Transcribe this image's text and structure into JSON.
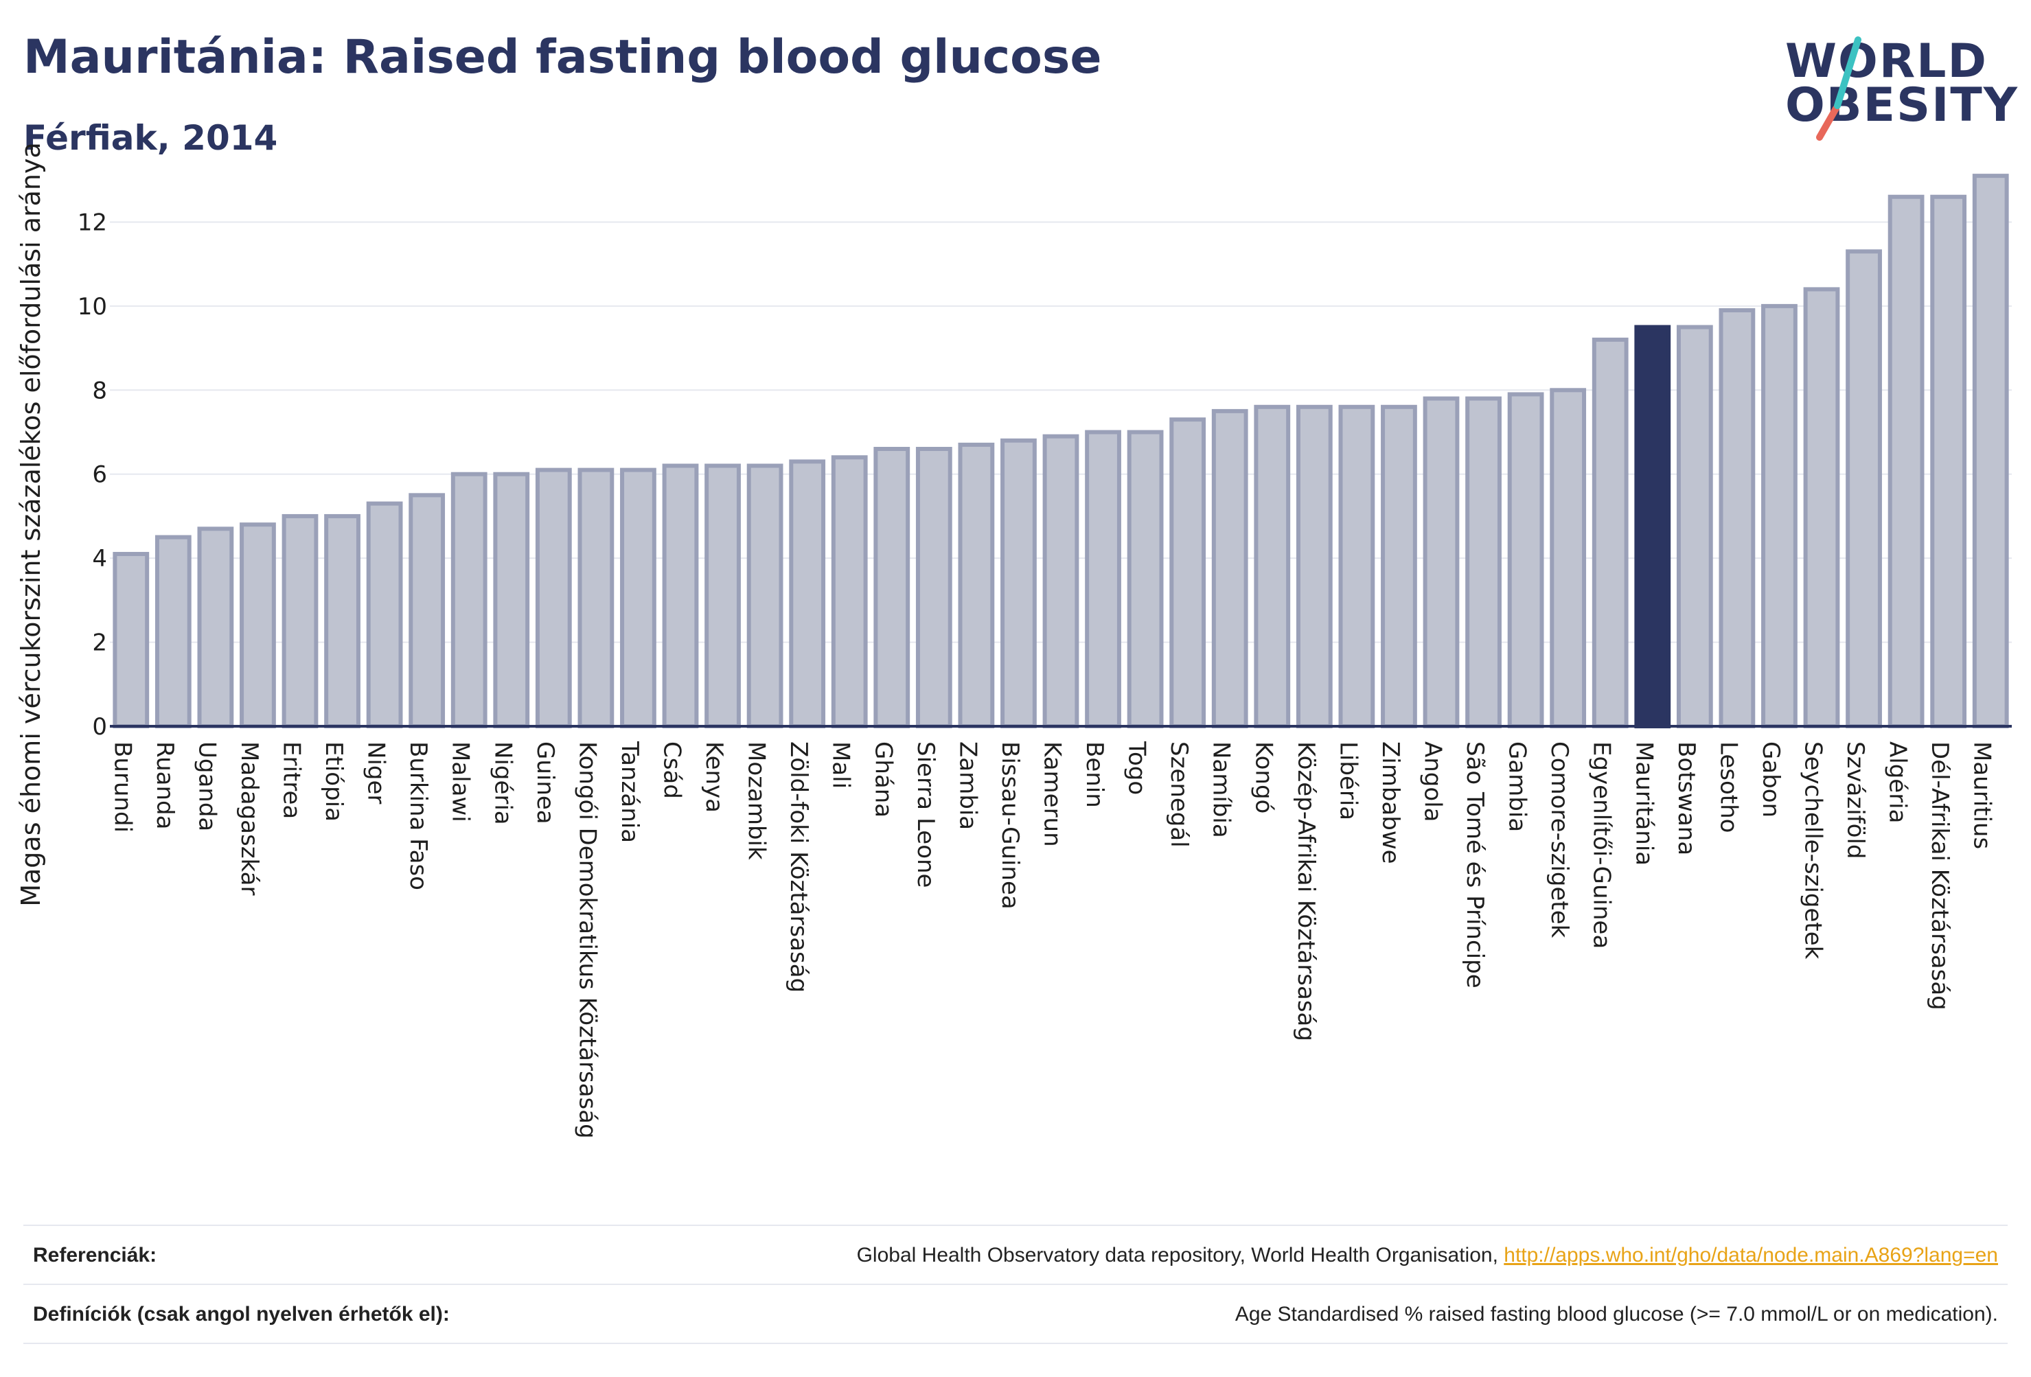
{
  "header": {
    "title": "Mauritánia: Raised fasting blood glucose",
    "subtitle": "Férfiak, 2014"
  },
  "logo": {
    "line1": "WORLD",
    "line2": "OBESITY",
    "accent_colors": [
      "#3cc2c2",
      "#e8685a"
    ]
  },
  "colors": {
    "bar": "#bfc3d0",
    "bar_stroke": "#9aa0b8",
    "highlight": "#2b3561",
    "grid": "#e6e8ef",
    "axis": "#2b3561"
  },
  "chart_data": {
    "type": "bar",
    "ylabel": "Magas éhomi vércukorszint százalékos előfordulási aránya",
    "xlabel": "",
    "ylim": [
      0,
      13.2
    ],
    "yticks": [
      0,
      2,
      4,
      6,
      8,
      10,
      12
    ],
    "grid": true,
    "highlight": "Mauritánia",
    "categories": [
      "Burundi",
      "Ruanda",
      "Uganda",
      "Madagaszkár",
      "Eritrea",
      "Etiópia",
      "Niger",
      "Burkina Faso",
      "Malawi",
      "Nigéria",
      "Guinea",
      "Kongói Demokratikus Köztársaság",
      "Tanzánia",
      "Csád",
      "Kenya",
      "Mozambik",
      "Zöld-foki Köztársaság",
      "Mali",
      "Ghána",
      "Sierra Leone",
      "Zambia",
      "Bissau-Guinea",
      "Kamerun",
      "Benin",
      "Togo",
      "Szenegál",
      "Namíbia",
      "Kongó",
      "Közép-Afrikai Köztársaság",
      "Libéria",
      "Zimbabwe",
      "Angola",
      "São Tomé és Príncipe",
      "Gambia",
      "Comore-szigetek",
      "Egyenlítői-Guinea",
      "Mauritánia",
      "Botswana",
      "Lesotho",
      "Gabon",
      "Seychelle-szigetek",
      "Szváziföld",
      "Algéria",
      "Dél-Afrikai Köztársaság",
      "Mauritius"
    ],
    "values": [
      4.1,
      4.5,
      4.7,
      4.8,
      5.0,
      5.0,
      5.3,
      5.5,
      6.0,
      6.0,
      6.1,
      6.1,
      6.1,
      6.2,
      6.2,
      6.2,
      6.3,
      6.4,
      6.6,
      6.6,
      6.7,
      6.8,
      6.9,
      7.0,
      7.0,
      7.3,
      7.5,
      7.6,
      7.6,
      7.6,
      7.6,
      7.8,
      7.8,
      7.9,
      8.0,
      9.2,
      9.5,
      9.5,
      9.9,
      10.0,
      10.4,
      11.3,
      12.6,
      12.6,
      13.1
    ]
  },
  "footer": {
    "references_label": "Referenciák:",
    "references_text": "Global Health Observatory data repository, World Health Organisation, ",
    "references_link": "http://apps.who.int/gho/data/node.main.A869?lang=en",
    "definitions_label": "Definíciók (csak angol nyelven érhetők el):",
    "definitions_text": "Age Standardised % raised fasting blood glucose (>= 7.0 mmol/L or on medication)."
  }
}
